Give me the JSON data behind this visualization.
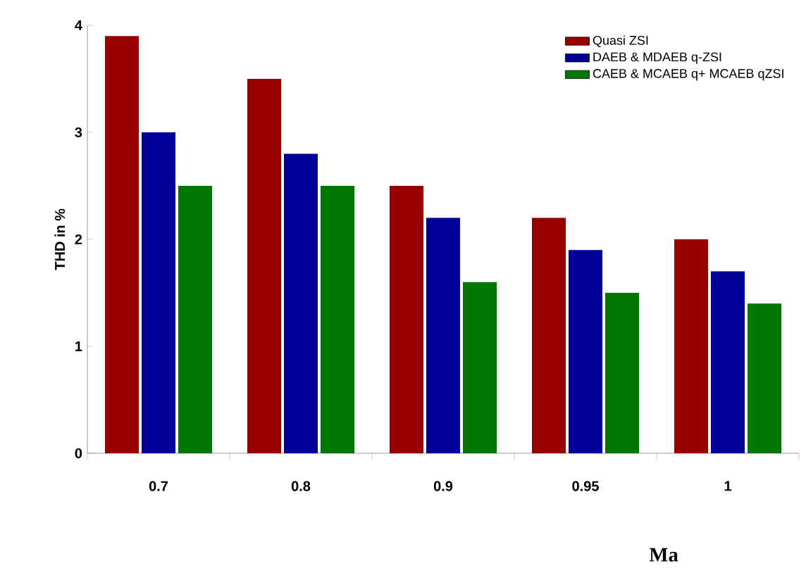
{
  "chart_data": {
    "type": "bar",
    "xlabel": "Ma",
    "ylabel": "THD in %",
    "categories": [
      "0.7",
      "0.8",
      "0.9",
      "0.95",
      "1"
    ],
    "series": [
      {
        "name": "Quasi ZSI",
        "color": "#990000",
        "values": [
          3.9,
          3.5,
          2.5,
          2.2,
          2.0
        ]
      },
      {
        "name": "DAEB & MDAEB q-ZSI",
        "color": "#000099",
        "values": [
          3.0,
          2.8,
          2.2,
          1.9,
          1.7
        ]
      },
      {
        "name": "CAEB & MCAEB q+ MCAEB qZSI",
        "color": "#007700",
        "values": [
          2.5,
          2.5,
          1.6,
          1.5,
          1.4
        ]
      }
    ],
    "ylim": [
      0,
      4
    ],
    "yticks": [
      0,
      1,
      2,
      3,
      4
    ],
    "grid": false,
    "legend": "top right"
  }
}
